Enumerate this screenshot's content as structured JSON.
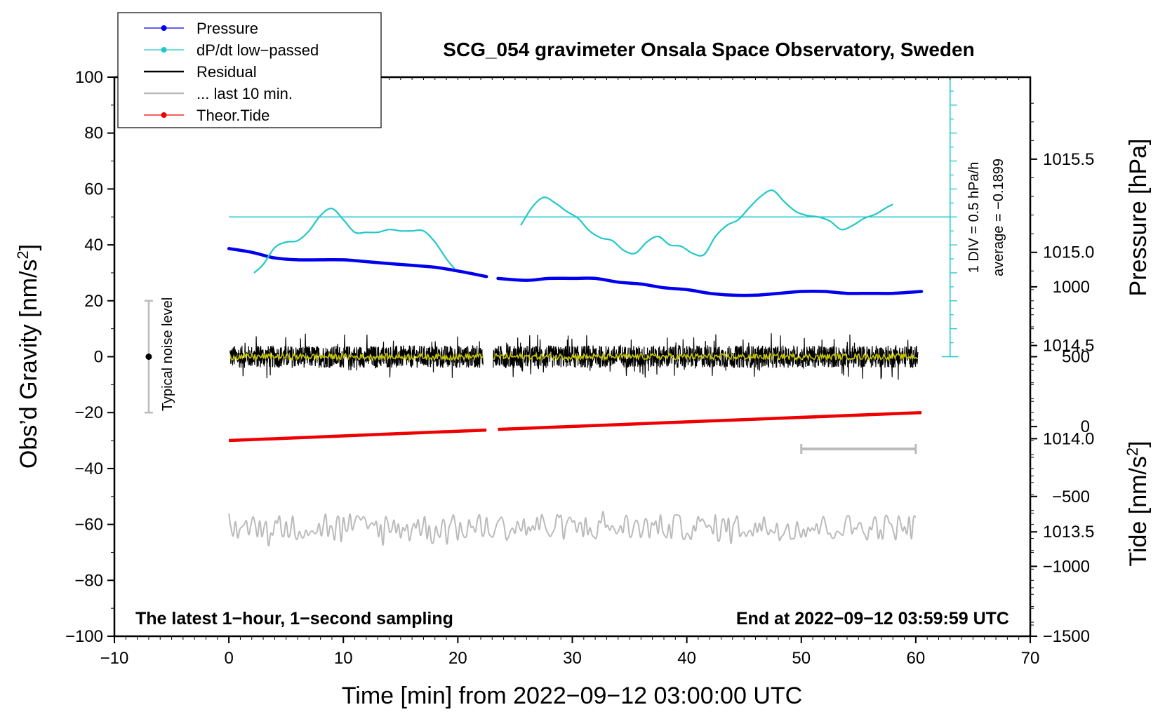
{
  "chart_data": {
    "type": "line",
    "title": "SCG_054 gravimeter Onsala Space Observatory, Sweden",
    "xlabel": "Time [min] from 2022−09−12 03:00:00 UTC",
    "ylabel_left": "Obs’d Gravity [nm/s",
    "ylabel_left_sup": "2",
    "ylabel_left_end": "]",
    "ylabel_right_pressure": "Pressure [hPa]",
    "ylabel_right_tide": "Tide [nm/s",
    "ylabel_right_tide_sup": "2",
    "ylabel_right_tide_end": "]",
    "xlim": [
      -10,
      70
    ],
    "ylim": [
      -100,
      100
    ],
    "x_ticks": [
      {
        "v": -10,
        "label": "−10"
      },
      {
        "v": 0,
        "label": "0"
      },
      {
        "v": 10,
        "label": "10"
      },
      {
        "v": 20,
        "label": "20"
      },
      {
        "v": 30,
        "label": "30"
      },
      {
        "v": 40,
        "label": "40"
      },
      {
        "v": 50,
        "label": "50"
      },
      {
        "v": 60,
        "label": "60"
      },
      {
        "v": 70,
        "label": "70"
      }
    ],
    "y_ticks": [
      {
        "v": 100,
        "label": "100"
      },
      {
        "v": 80,
        "label": "80"
      },
      {
        "v": 60,
        "label": "60"
      },
      {
        "v": 40,
        "label": "40"
      },
      {
        "v": 20,
        "label": "20"
      },
      {
        "v": 0,
        "label": "0"
      },
      {
        "v": -20,
        "label": "−20"
      },
      {
        "v": -40,
        "label": "−40"
      },
      {
        "v": -60,
        "label": "−60"
      },
      {
        "v": -80,
        "label": "−80"
      },
      {
        "v": -100,
        "label": "−100"
      }
    ],
    "pressure_axis": {
      "ylim": [
        1012.94,
        1015.94
      ],
      "ticks": [
        {
          "v": 1015.5,
          "label": "1015.5"
        },
        {
          "v": 1015.0,
          "label": "1015.0"
        },
        {
          "v": 1014.5,
          "label": "1014.5"
        },
        {
          "v": 1014.0,
          "label": "1014.0"
        },
        {
          "v": 1013.5,
          "label": "1013.5"
        }
      ]
    },
    "tide_axis": {
      "ylim": [
        -1500,
        2500
      ],
      "ticks": [
        {
          "v": 1000,
          "label": "1000"
        },
        {
          "v": 500,
          "label": "500"
        },
        {
          "v": 0,
          "label": "0"
        },
        {
          "v": -500,
          "label": "−500"
        },
        {
          "v": -1000,
          "label": "−1000"
        },
        {
          "v": -1500,
          "label": "−1500"
        }
      ]
    },
    "legend": [
      {
        "label": "Pressure",
        "color": "#0000ee",
        "marker": true
      },
      {
        "label": "dP/dt low−passed",
        "color": "#20c8c8",
        "marker": true
      },
      {
        "label": "Residual",
        "color": "#000000",
        "marker": false
      },
      {
        "label": "... last 10 min.",
        "color": "#bbbbbb",
        "marker": false
      },
      {
        "label": "Theor.Tide",
        "color": "#ee0000",
        "marker": true
      }
    ],
    "series": [
      {
        "name": "Pressure",
        "color": "#0000ee",
        "axis": "pressure",
        "segments": [
          {
            "x": [
              0,
              2,
              4,
              6,
              8,
              10,
              12,
              14,
              16,
              18,
              20,
              22.5
            ],
            "y": [
              1015.02,
              1015.0,
              1014.97,
              1014.96,
              1014.96,
              1014.96,
              1014.95,
              1014.94,
              1014.93,
              1014.92,
              1014.9,
              1014.87
            ]
          },
          {
            "x": [
              23.5,
              26,
              28,
              30,
              32,
              34,
              36,
              38,
              40,
              42,
              44,
              46,
              48,
              50,
              52,
              54,
              56,
              58,
              60.5
            ],
            "y": [
              1014.86,
              1014.85,
              1014.86,
              1014.86,
              1014.86,
              1014.84,
              1014.83,
              1014.81,
              1014.8,
              1014.78,
              1014.77,
              1014.77,
              1014.78,
              1014.79,
              1014.79,
              1014.78,
              1014.78,
              1014.78,
              1014.79
            ]
          }
        ]
      },
      {
        "name": "dP/dt low-passed",
        "color": "#20c8c8",
        "axis": "gravity",
        "segments": [
          {
            "x": [
              2.2,
              3,
              4,
              5,
              6,
              7,
              8,
              9,
              10,
              11,
              12,
              13,
              14,
              15,
              16,
              17,
              18,
              19,
              19.7
            ],
            "y": [
              30,
              33,
              39,
              41,
              41.5,
              45,
              50.5,
              53,
              49,
              44.5,
              44.5,
              44.5,
              45.5,
              45,
              45,
              45,
              41,
              35,
              31.5
            ]
          },
          {
            "x": [
              25.5,
              26.5,
              27.5,
              28.5,
              29.5,
              30.5,
              31.5,
              32.5,
              33.5,
              34.5,
              35.5,
              36.5,
              37.5,
              38.5,
              39.5,
              40.5,
              41.5,
              42.5,
              43.5,
              44.5,
              45.5,
              46.5,
              47.5,
              48.5,
              49.5,
              50.5,
              51.5,
              52.5,
              53.5,
              54.5,
              55.5,
              56.5,
              57.5,
              58.0
            ],
            "y": [
              47,
              53.5,
              57,
              55,
              52,
              49.5,
              45,
              42.5,
              41.5,
              38,
              37,
              41,
              43,
              40,
              39.5,
              37,
              36.5,
              43,
              47,
              49,
              53.5,
              57.5,
              59.5,
              55.5,
              52,
              50.5,
              50,
              48.5,
              45.5,
              47,
              49.5,
              51,
              53.5,
              54.5
            ]
          }
        ]
      },
      {
        "name": "Residual",
        "color": "#000000",
        "axis": "gravity",
        "segments": [
          {
            "x": [
              0.1,
              22.2
            ],
            "y": [
              0,
              0
            ]
          },
          {
            "x": [
              23.1,
              60.2
            ],
            "y": [
              0,
              0
            ]
          }
        ],
        "approx_range": [
          -8,
          10
        ]
      },
      {
        "name": "Smoothed residual",
        "color": "#c8c800",
        "axis": "gravity",
        "segments": [
          {
            "x": [
              0.1,
              22.2
            ],
            "y": [
              0,
              0
            ]
          },
          {
            "x": [
              23.1,
              60.2
            ],
            "y": [
              0,
              0
            ]
          }
        ]
      },
      {
        "name": "... last 10 min.",
        "color": "#bbbbbb",
        "axis": "gravity",
        "segments": [
          {
            "x": [
              0,
              60
            ],
            "y": [
              -61,
              -61
            ]
          }
        ],
        "approx_range": [
          -69,
          -55
        ]
      },
      {
        "name": "Theor.Tide",
        "color": "#ee0000",
        "axis": "tide",
        "segments": [
          {
            "x": [
              0,
              22.5
            ],
            "y": [
              -100,
              -25
            ]
          },
          {
            "x": [
              23.5,
              60.5
            ],
            "y": [
              -20,
              100
            ]
          }
        ]
      }
    ],
    "annotations": {
      "noise_label": "Typical noise level",
      "noise_bar": {
        "x": -7,
        "y_center": 0,
        "y_low": -20,
        "y_high": 20
      },
      "scale_div": "1 DIV = 0.5 hPa/h",
      "scale_avg": "average = −0.1899",
      "dpdt_axis": {
        "x": 63,
        "y_low": 0,
        "y_high": 100,
        "baseline": 50
      },
      "last10_bar": {
        "x_start": 50,
        "x_end": 60,
        "y": -33
      },
      "bottom_left": "The latest 1−hour, 1−second sampling",
      "bottom_right": "End at 2022−09−12 03:59:59 UTC"
    }
  }
}
